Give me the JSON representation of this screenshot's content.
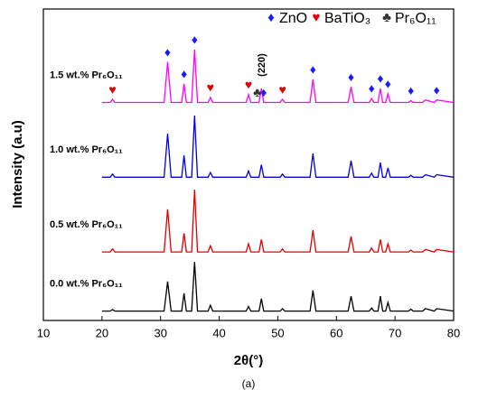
{
  "chart_data": {
    "type": "line",
    "xlabel": "2θ(°)",
    "ylabel": "Intensity (a.u)",
    "caption": "(a)",
    "xlim": [
      10,
      80
    ],
    "xticks": [
      10,
      20,
      30,
      40,
      50,
      60,
      70,
      80
    ],
    "ylim": [
      0,
      100
    ],
    "x": [
      20,
      21.4,
      21.8,
      22.2,
      30.6,
      31.2,
      31.8,
      33.6,
      34,
      34.4,
      35.3,
      35.8,
      36.3,
      38.1,
      38.5,
      38.9,
      44.6,
      45,
      45.4,
      46.8,
      47.2,
      47.6,
      50.4,
      50.8,
      51.2,
      55.5,
      56,
      56.5,
      62,
      62.5,
      63,
      65.6,
      66,
      66.4,
      67.1,
      67.5,
      67.9,
      68.4,
      68.8,
      69.2,
      72.3,
      72.7,
      73.1,
      74.7,
      75.2,
      76.7,
      77.1,
      80
    ],
    "series": [
      {
        "name": "0.0 wt.% Pr₆O₁₁",
        "color": "#000000",
        "values": [
          3,
          3,
          3.5,
          3,
          3,
          12.5,
          3,
          3,
          8.7,
          3,
          3,
          18.8,
          3,
          3,
          4.9,
          3,
          3,
          4.5,
          3,
          3,
          7,
          3,
          3,
          3.8,
          3,
          3,
          9.6,
          3,
          3,
          7.8,
          3,
          3,
          4,
          3,
          3,
          7.8,
          3,
          3,
          5.8,
          3,
          3,
          3.6,
          3,
          3,
          3.8,
          3,
          3.8,
          3
        ]
      },
      {
        "name": "0.5 wt.% Pr₆O₁₁",
        "color": "#e00000",
        "values": [
          22,
          22,
          23,
          22,
          22,
          35.7,
          22,
          22,
          28,
          22,
          22,
          42,
          22,
          22,
          24,
          22,
          22,
          24.6,
          22,
          22,
          26,
          22,
          22,
          23,
          22,
          22,
          29,
          22,
          22,
          27,
          22,
          22,
          23.3,
          22,
          22,
          26,
          22,
          22,
          24.6,
          22,
          22,
          22.6,
          22,
          22,
          22.8,
          22,
          22.8,
          22
        ]
      },
      {
        "name": "1.0 wt.% Pr₆O₁₁",
        "color": "#0000e0",
        "values": [
          46,
          46,
          47,
          46,
          46,
          60,
          46,
          46,
          53,
          46,
          46,
          65.8,
          46,
          46,
          47.5,
          46,
          46,
          48,
          46,
          46,
          50,
          46,
          46,
          47,
          46,
          46,
          53.6,
          46,
          46,
          51.3,
          46,
          46,
          47.3,
          46,
          46,
          50.7,
          46,
          46,
          49,
          46,
          46,
          46.6,
          46,
          46,
          46.8,
          46,
          46.8,
          46
        ]
      },
      {
        "name": "1.5 wt.% Pr₆O₁₁",
        "color": "#ff00ff",
        "values": [
          70,
          70,
          71,
          70,
          70,
          83,
          70,
          70,
          76,
          70,
          70,
          87,
          70,
          70,
          71.6,
          70,
          70,
          72.5,
          70,
          70,
          74.5,
          70,
          70,
          71,
          70,
          70,
          77.4,
          70,
          70,
          75,
          70,
          70,
          71.3,
          70,
          70,
          74.5,
          70,
          70,
          72.8,
          70,
          70,
          70.6,
          70,
          70,
          70.8,
          70,
          70.8,
          70
        ]
      }
    ],
    "phases": [
      {
        "name": "ZnO",
        "symbol": "♦",
        "color": "#1a1aff",
        "positions": [
          31.2,
          34,
          35.8,
          47.6,
          56,
          62.5,
          66,
          67.5,
          68.8,
          72.7,
          77.1
        ]
      },
      {
        "name": "BaTiO₃",
        "symbol": "♥",
        "color": "#e00000",
        "positions": [
          21.8,
          38.5,
          45,
          50.8
        ]
      },
      {
        "name": "Pr₆O₁₁",
        "symbol": "♣",
        "color": "#333333",
        "positions": [
          46.5
        ]
      }
    ],
    "annotation": "(220)"
  }
}
